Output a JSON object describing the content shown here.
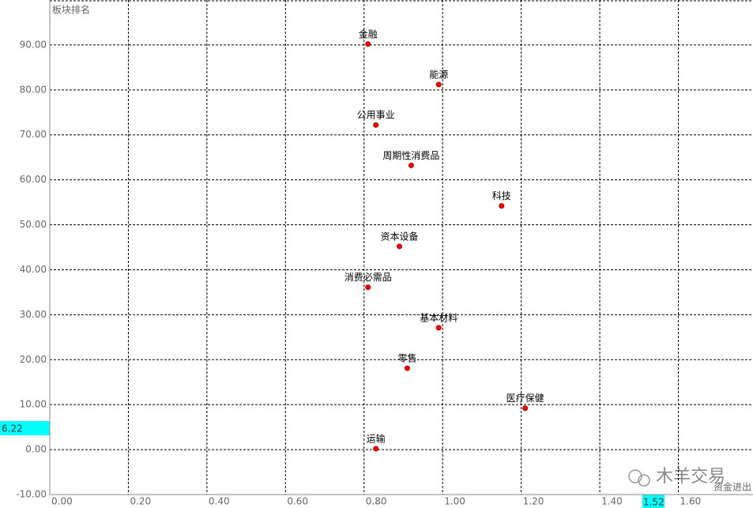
{
  "chart_data": {
    "type": "scatter",
    "ylabel": "板块排名",
    "xlabel": "资金进出",
    "x": [
      0.81,
      0.99,
      0.83,
      0.92,
      1.15,
      0.89,
      0.81,
      0.99,
      0.91,
      1.21,
      0.83
    ],
    "values": [
      90.2,
      81.2,
      72.2,
      63.2,
      54.2,
      45.2,
      36.1,
      27.1,
      18.1,
      9.2,
      0.2
    ],
    "point_labels": [
      "金融",
      "能源",
      "公用事业",
      "周期性消费品",
      "科技",
      "资本设备",
      "消费必需品",
      "基本材料",
      "零售",
      "医疗保健",
      "运输"
    ],
    "color": "#ff0000",
    "xlim": [
      0,
      1.79
    ],
    "ylim": [
      -10,
      100
    ],
    "xticks": [
      {
        "value": 0,
        "label": "0.00"
      },
      {
        "value": 0.2,
        "label": "0.20"
      },
      {
        "value": 0.4,
        "label": "0.40"
      },
      {
        "value": 0.6,
        "label": "0.60"
      },
      {
        "value": 0.8,
        "label": "0.80"
      },
      {
        "value": 1.0,
        "label": "1.00"
      },
      {
        "value": 1.2,
        "label": "1.20"
      },
      {
        "value": 1.4,
        "label": "1.40"
      },
      {
        "value": 1.6,
        "label": "1.60"
      }
    ],
    "yticks": [
      {
        "value": -10,
        "label": "-10.00"
      },
      {
        "value": 0,
        "label": "0.00"
      },
      {
        "value": 10,
        "label": "10.00"
      },
      {
        "value": 20,
        "label": "20.00"
      },
      {
        "value": 30,
        "label": "30.00"
      },
      {
        "value": 40,
        "label": "40.00"
      },
      {
        "value": 50,
        "label": "50.00"
      },
      {
        "value": 60,
        "label": "60.00"
      },
      {
        "value": 70,
        "label": "70.00"
      },
      {
        "value": 80,
        "label": "80.00"
      },
      {
        "value": 90,
        "label": "90.00"
      }
    ],
    "grid": true,
    "cursor": {
      "x_label": "1.52",
      "y_label": "6.22"
    },
    "watermark": "木羊交易"
  }
}
